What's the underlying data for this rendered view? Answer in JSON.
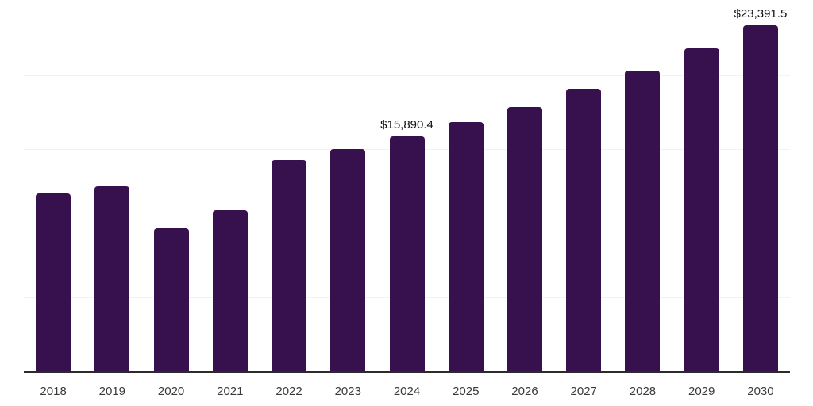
{
  "chart_data": {
    "type": "bar",
    "title": "",
    "xlabel": "",
    "ylabel": "",
    "categories": [
      "2018",
      "2019",
      "2020",
      "2021",
      "2022",
      "2023",
      "2024",
      "2025",
      "2026",
      "2027",
      "2028",
      "2029",
      "2030"
    ],
    "values": [
      12020,
      12500,
      9660,
      10890,
      14270,
      15020,
      15890.4,
      16850,
      17870,
      19100,
      20330,
      21840,
      23391.5
    ],
    "value_labels": [
      "",
      "",
      "",
      "",
      "",
      "",
      "$15,890.4",
      "",
      "",
      "",
      "",
      "",
      "$23,391.5"
    ],
    "ylim": [
      0,
      25000
    ],
    "gridline_values": [
      5000,
      10000,
      15000,
      20000,
      25000
    ],
    "grid": "horizontal",
    "legend_position": "none",
    "colors": {
      "bar": "#36114E",
      "gridline": "#f2f2f2",
      "axis_line": "#2b2b2b",
      "tick_label": "#3a3a3a",
      "value_label": "#111111",
      "background": "#ffffff"
    }
  }
}
